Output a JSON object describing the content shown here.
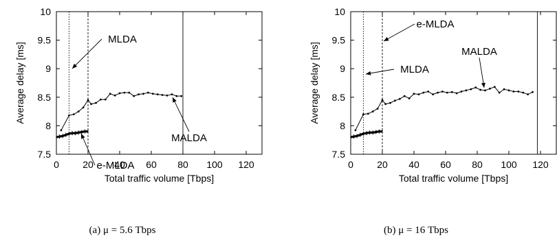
{
  "chart_data": [
    {
      "type": "line",
      "caption": "(a) μ = 5.6 Tbps",
      "xlabel": "Total traffic volume [Tbps]",
      "ylabel": "Average delay [ms]",
      "xlim": [
        0,
        130
      ],
      "ylim": [
        7.5,
        10
      ],
      "xticks": [
        "0",
        "20",
        "40",
        "60",
        "80",
        "100",
        "120"
      ],
      "yticks": [
        "7.5",
        "8",
        "8.5",
        "9",
        "9.5",
        "10"
      ],
      "series": [
        {
          "name": "MALDA",
          "style": "solid-marker",
          "x": [
            3,
            8,
            11,
            14,
            17,
            20,
            22,
            25,
            28,
            31,
            34,
            37,
            40,
            43,
            46,
            49,
            52,
            55,
            58,
            61,
            64,
            67,
            70,
            73,
            76,
            79
          ],
          "y": [
            7.92,
            8.18,
            8.2,
            8.25,
            8.32,
            8.45,
            8.38,
            8.4,
            8.46,
            8.46,
            8.56,
            8.53,
            8.57,
            8.58,
            8.58,
            8.52,
            8.55,
            8.56,
            8.58,
            8.56,
            8.55,
            8.54,
            8.53,
            8.55,
            8.52,
            8.52
          ]
        },
        {
          "name": "e-MLDA",
          "style": "thick-marker",
          "x": [
            0,
            2,
            4,
            6,
            8,
            10,
            12,
            14,
            16,
            18,
            20
          ],
          "y": [
            7.8,
            7.81,
            7.82,
            7.84,
            7.86,
            7.87,
            7.87,
            7.88,
            7.89,
            7.9,
            7.9
          ]
        }
      ],
      "limits": [
        {
          "name": "MLDA",
          "x": 8,
          "style": "dotted"
        },
        {
          "name": "e-MLDA",
          "x": 20,
          "style": "dashed"
        },
        {
          "name": "MALDA",
          "x": 80,
          "style": "solid"
        }
      ],
      "annotations": [
        {
          "text": "MLDA",
          "at_x": 8,
          "at_y": 9.1
        },
        {
          "text": "e-MLDA",
          "at_x": 11,
          "at_y": 7.85
        },
        {
          "text": "MALDA",
          "at_x": 72,
          "at_y": 8.5
        }
      ]
    },
    {
      "type": "line",
      "caption": "(b) μ = 16 Tbps",
      "xlabel": "Total traffic volume [Tbps]",
      "ylabel": "Average delay [ms]",
      "xlim": [
        0,
        130
      ],
      "ylim": [
        7.5,
        10
      ],
      "xticks": [
        "0",
        "20",
        "40",
        "60",
        "80",
        "100",
        "120"
      ],
      "yticks": [
        "7.5",
        "8",
        "8.5",
        "9",
        "9.5",
        "10"
      ],
      "series": [
        {
          "name": "MALDA",
          "style": "solid-marker",
          "x": [
            3,
            8,
            11,
            14,
            17,
            20,
            22,
            25,
            28,
            31,
            34,
            37,
            40,
            43,
            46,
            49,
            52,
            55,
            58,
            61,
            64,
            67,
            70,
            73,
            76,
            79,
            82,
            85,
            88,
            91,
            94,
            97,
            100,
            103,
            106,
            109,
            112,
            115
          ],
          "y": [
            7.92,
            8.2,
            8.21,
            8.25,
            8.3,
            8.45,
            8.38,
            8.4,
            8.44,
            8.47,
            8.52,
            8.48,
            8.56,
            8.55,
            8.58,
            8.6,
            8.55,
            8.58,
            8.6,
            8.58,
            8.59,
            8.57,
            8.6,
            8.62,
            8.64,
            8.67,
            8.63,
            8.62,
            8.65,
            8.68,
            8.58,
            8.64,
            8.62,
            8.6,
            8.6,
            8.58,
            8.55,
            8.59
          ]
        },
        {
          "name": "e-MLDA",
          "style": "thick-marker",
          "x": [
            0,
            2,
            4,
            6,
            8,
            10,
            12,
            14,
            16,
            18,
            20
          ],
          "y": [
            7.8,
            7.81,
            7.82,
            7.84,
            7.86,
            7.87,
            7.88,
            7.88,
            7.89,
            7.9,
            7.9
          ]
        }
      ],
      "limits": [
        {
          "name": "MLDA",
          "x": 8,
          "style": "dotted"
        },
        {
          "name": "e-MLDA",
          "x": 20,
          "style": "dashed"
        },
        {
          "name": "MALDA",
          "x": 118,
          "style": "solid"
        }
      ],
      "annotations": [
        {
          "text": "e-MLDA",
          "at_x": 20,
          "at_y": 9.7
        },
        {
          "text": "MLDA",
          "at_x": 8,
          "at_y": 9.3
        },
        {
          "text": "MALDA",
          "at_x": 85,
          "at_y": 8.65
        }
      ]
    }
  ]
}
